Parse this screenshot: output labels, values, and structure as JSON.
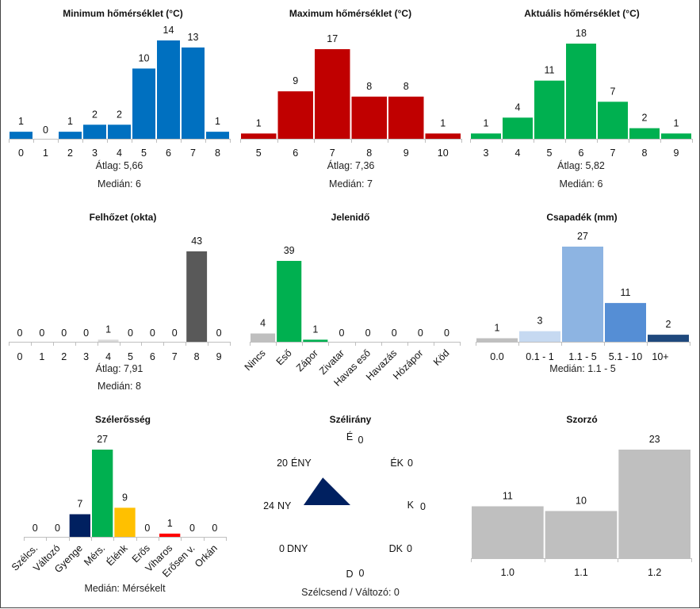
{
  "chart_data": [
    {
      "type": "bar",
      "title": "Minimum hőmérséklet (°C)",
      "categories": [
        "0",
        "1",
        "2",
        "3",
        "4",
        "5",
        "6",
        "7",
        "8"
      ],
      "values": [
        1,
        0,
        1,
        2,
        2,
        10,
        14,
        13,
        1
      ],
      "colors": [
        "#0070C0"
      ],
      "footer": [
        "Átlag:  5,66",
        "Medián:  6"
      ]
    },
    {
      "type": "bar",
      "title": "Maximum hőmérséklet (°C)",
      "categories": [
        "5",
        "6",
        "7",
        "8",
        "9",
        "10"
      ],
      "values": [
        1,
        9,
        17,
        8,
        8,
        1
      ],
      "colors": [
        "#C00000"
      ],
      "footer": [
        "Átlag:  7,36",
        "Medián:  7"
      ]
    },
    {
      "type": "bar",
      "title": "Aktuális hőmérséklet (°C)",
      "categories": [
        "3",
        "4",
        "5",
        "6",
        "7",
        "8",
        "9"
      ],
      "values": [
        1,
        4,
        11,
        18,
        7,
        2,
        1
      ],
      "colors": [
        "#00B050"
      ],
      "footer": [
        "Átlag:  5,82",
        "Medián:  6"
      ]
    },
    {
      "type": "bar",
      "title": "Felhőzet (okta)",
      "categories": [
        "0",
        "1",
        "2",
        "3",
        "4",
        "5",
        "6",
        "7",
        "8",
        "9"
      ],
      "values": [
        0,
        0,
        0,
        0,
        1,
        0,
        0,
        0,
        43,
        0
      ],
      "colors": [
        "#D9D9D9",
        "#D9D9D9",
        "#D9D9D9",
        "#D9D9D9",
        "#D9D9D9",
        "#D9D9D9",
        "#D9D9D9",
        "#D9D9D9",
        "#595959",
        "#D9D9D9"
      ],
      "footer": [
        "Átlag:  7,91",
        "Medián:  8"
      ]
    },
    {
      "type": "bar",
      "title": "Jelenidő",
      "categories": [
        "Nincs",
        "Eső",
        "Zápor",
        "Zivatar",
        "Havas eső",
        "Havazás",
        "Hózápor",
        "Köd"
      ],
      "values": [
        4,
        39,
        1,
        0,
        0,
        0,
        0,
        0
      ],
      "colors": [
        "#BFBFBF",
        "#00B050",
        "#00B050",
        "#00B050",
        "#00B050",
        "#00B050",
        "#00B050",
        "#00B050"
      ],
      "footer": []
    },
    {
      "type": "bar",
      "title": "Csapadék (mm)",
      "categories": [
        "0.0",
        "0.1 - 1",
        "1.1 - 5",
        "5.1 - 10",
        "10+"
      ],
      "values": [
        1,
        3,
        27,
        11,
        2
      ],
      "colors": [
        "#BFBFBF",
        "#C6D9F1",
        "#8DB4E2",
        "#558ED5",
        "#1F497D"
      ],
      "footer": [
        "Medián:  1.1 - 5"
      ]
    },
    {
      "type": "bar",
      "title": "Szélerősség",
      "categories": [
        "Szélcs.",
        "Változó",
        "Gyenge",
        "Mérs.",
        "Élénk",
        "Erős",
        "Viharos",
        "Erősen v.",
        "Orkán"
      ],
      "values": [
        0,
        0,
        7,
        27,
        9,
        0,
        1,
        0,
        0
      ],
      "colors": [
        "#BFBFBF",
        "#BFBFBF",
        "#002060",
        "#00B050",
        "#FFC000",
        "#FF6600",
        "#FF0000",
        "#C00000",
        "#7030A0"
      ],
      "footer": [
        "Medián:  Mérsékelt"
      ]
    },
    {
      "type": "radar",
      "title": "Szélirány",
      "directions": [
        {
          "name": "É",
          "value": 0
        },
        {
          "name": "ÉK",
          "value": 0
        },
        {
          "name": "K",
          "value": 0
        },
        {
          "name": "DK",
          "value": 0
        },
        {
          "name": "D",
          "value": 0
        },
        {
          "name": "DNY",
          "value": 0
        },
        {
          "name": "NY",
          "value": 24
        },
        {
          "name": "ÉNY",
          "value": 20
        }
      ],
      "colors": [
        "#002060"
      ],
      "footer": [
        "Szélcsend / Változó: 0"
      ]
    },
    {
      "type": "bar",
      "title": "Szorzó",
      "categories": [
        "1.0",
        "1.1",
        "1.2"
      ],
      "values": [
        11,
        10,
        23
      ],
      "colors": [
        "#BFBFBF"
      ],
      "footer": []
    }
  ]
}
